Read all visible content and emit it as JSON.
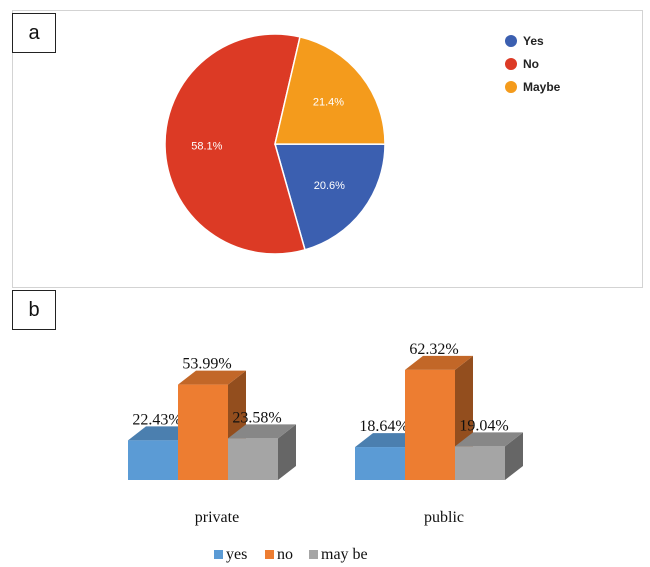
{
  "panels": {
    "a": "a",
    "b": "b"
  },
  "chart_data": [
    {
      "type": "pie",
      "slices": [
        {
          "name": "Yes",
          "value": 20.6,
          "label": "20.6%",
          "color": "#3b5fb0"
        },
        {
          "name": "No",
          "value": 58.1,
          "label": "58.1%",
          "color": "#dc3a25"
        },
        {
          "name": "Maybe",
          "value": 21.4,
          "label": "21.4%",
          "color": "#f49b1c"
        }
      ],
      "legend_position": "right"
    },
    {
      "type": "bar",
      "categories": [
        "private",
        "public"
      ],
      "series": [
        {
          "name": "yes",
          "values": [
            22.43,
            18.64
          ],
          "labels": [
            "22.43%",
            "18.64%"
          ],
          "color": "#5b9bd5"
        },
        {
          "name": "no",
          "values": [
            53.99,
            62.32
          ],
          "labels": [
            "53.99%",
            "62.32%"
          ],
          "color": "#ed7d31"
        },
        {
          "name": "may be",
          "values": [
            23.58,
            19.04
          ],
          "labels": [
            "23.58%",
            "19.04%"
          ],
          "color": "#a5a5a5"
        }
      ],
      "legend_position": "bottom",
      "style": "3d"
    }
  ]
}
